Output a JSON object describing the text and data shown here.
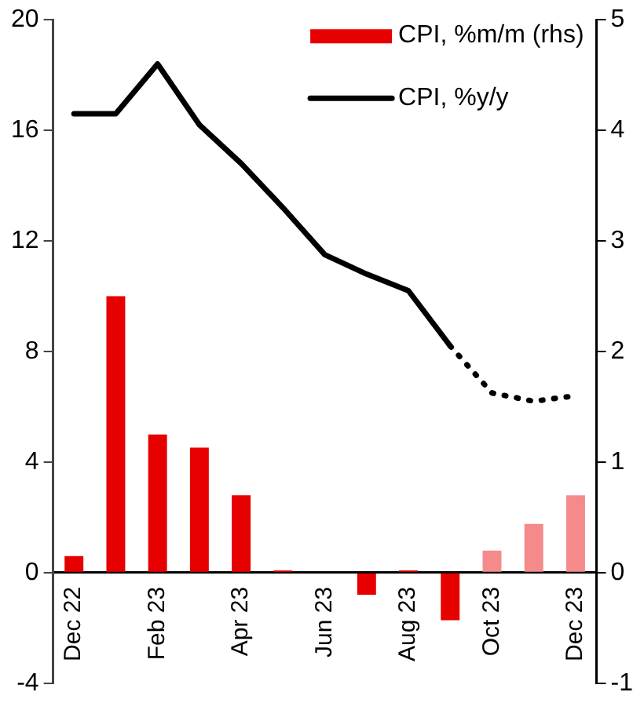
{
  "chart_data": {
    "type": "bar",
    "categories": [
      "Dec 22",
      null,
      "Feb 23",
      null,
      "Apr 23",
      null,
      "Jun 23",
      null,
      "Aug 23",
      null,
      "Oct 23",
      null,
      "Dec 23"
    ],
    "series": [
      {
        "name": "CPI, %m/m (rhs)",
        "axis": "y2",
        "color": "#e60000",
        "colors": [
          "#e60000",
          "#e60000",
          "#e60000",
          "#e60000",
          "#e60000",
          "#e60000",
          "#e60000",
          "#e60000",
          "#e60000",
          "#e60000",
          "#f58a8a",
          "#f58a8a",
          "#f58a8a"
        ],
        "values": [
          0.15,
          2.5,
          1.25,
          1.13,
          0.7,
          0.02,
          null,
          -0.2,
          0.02,
          -0.43,
          0.2,
          0.44,
          0.7
        ]
      },
      {
        "name": "CPI, %y/y",
        "type": "line",
        "color": "#000000",
        "line_style": "solid",
        "values": [
          16.6,
          16.6,
          18.4,
          16.2,
          14.8,
          13.2,
          11.5,
          10.8,
          10.2,
          8.2,
          null,
          null,
          null
        ]
      },
      {
        "type": "line",
        "color": "#000000",
        "line_style": "dotted",
        "values": [
          null,
          null,
          null,
          null,
          null,
          null,
          null,
          null,
          null,
          8.2,
          6.5,
          6.2,
          6.4
        ]
      }
    ],
    "ylim": [
      -4,
      20
    ],
    "yticks": [
      -4,
      0,
      4,
      8,
      12,
      16,
      20
    ],
    "y2lim": [
      -1,
      5
    ],
    "y2ticks": [
      -1,
      0,
      1,
      2,
      3,
      4,
      5
    ],
    "grid": false,
    "legend": "top right",
    "marker": "none"
  }
}
